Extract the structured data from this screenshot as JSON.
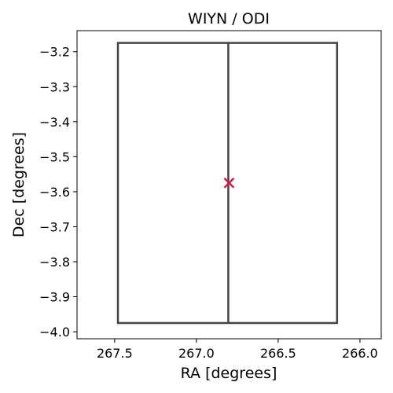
{
  "chart_data": {
    "type": "scatter",
    "title": "WIYN / ODI",
    "xlabel": "RA [degrees]",
    "ylabel": "Dec [degrees]",
    "xlim": [
      267.73,
      265.87
    ],
    "ylim": [
      -4.02,
      -3.14
    ],
    "x_inverted": true,
    "grid": false,
    "xticks": [
      267.5,
      267.0,
      266.5,
      266.0
    ],
    "xtick_labels": [
      "267.5",
      "267.0",
      "266.5",
      "266.0"
    ],
    "yticks": [
      -3.2,
      -3.3,
      -3.4,
      -3.5,
      -3.6,
      -3.7,
      -3.8,
      -3.9,
      -4.0
    ],
    "ytick_labels": [
      "−3.2",
      "−3.3",
      "−3.4",
      "−3.5",
      "−3.6",
      "−3.7",
      "−3.8",
      "−3.9",
      "−4.0"
    ],
    "footprint": {
      "ra_min": 266.14,
      "ra_max": 267.48,
      "dec_min": -3.975,
      "dec_max": -3.175,
      "ra_divider": 266.805,
      "color": "#444444"
    },
    "center_marker": {
      "ra": 266.8,
      "dec": -3.575,
      "symbol": "x",
      "color": "#cc1f46"
    },
    "axes_color": "#000000"
  }
}
